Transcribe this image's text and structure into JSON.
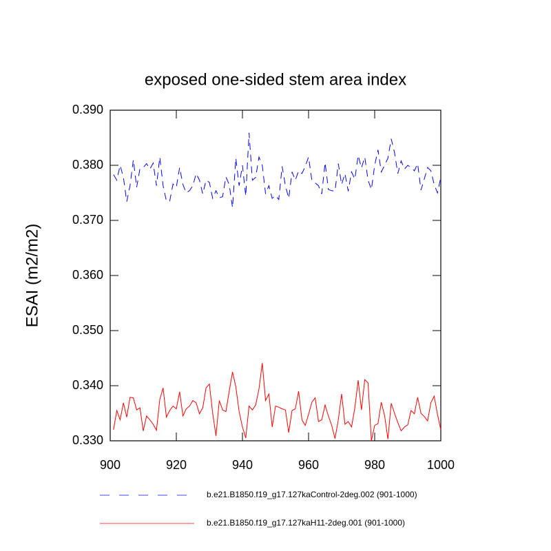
{
  "chart_data": {
    "type": "line",
    "title": "exposed one-sided stem area index",
    "ylabel": "ESAI  (m2/m2)",
    "xlim": [
      900,
      1000
    ],
    "xticks": [
      900,
      920,
      940,
      960,
      980,
      1000
    ],
    "ylim": [
      0.33,
      0.39
    ],
    "yticks": [
      {
        "value": 0.33,
        "label": "0.330"
      },
      {
        "value": 0.34,
        "label": "0.340"
      },
      {
        "value": 0.35,
        "label": "0.350"
      },
      {
        "value": 0.36,
        "label": "0.360"
      },
      {
        "value": 0.37,
        "label": "0.370"
      },
      {
        "value": 0.38,
        "label": "0.380"
      },
      {
        "value": 0.39,
        "label": "0.390"
      }
    ],
    "x": [
      901,
      902,
      903,
      904,
      905,
      906,
      907,
      908,
      909,
      910,
      911,
      912,
      913,
      914,
      915,
      916,
      917,
      918,
      919,
      920,
      921,
      922,
      923,
      924,
      925,
      926,
      927,
      928,
      929,
      930,
      931,
      932,
      933,
      934,
      935,
      936,
      937,
      938,
      939,
      940,
      941,
      942,
      943,
      944,
      945,
      946,
      947,
      948,
      949,
      950,
      951,
      952,
      953,
      954,
      955,
      956,
      957,
      958,
      959,
      960,
      961,
      962,
      963,
      964,
      965,
      966,
      967,
      968,
      969,
      970,
      971,
      972,
      973,
      974,
      975,
      976,
      977,
      978,
      979,
      980,
      981,
      982,
      983,
      984,
      985,
      986,
      987,
      988,
      989,
      990,
      991,
      992,
      993,
      994,
      995,
      996,
      997,
      998,
      999,
      1000
    ],
    "series": [
      {
        "name": "b.e21.B1850.f19_g17.127kaControl-2deg.002 (901-1000)",
        "color": "#0000ff",
        "dash": true,
        "values": [
          0.3783,
          0.3773,
          0.38,
          0.3778,
          0.3734,
          0.3763,
          0.381,
          0.376,
          0.3794,
          0.3796,
          0.3803,
          0.3793,
          0.3804,
          0.3763,
          0.3815,
          0.3763,
          0.3735,
          0.3735,
          0.3766,
          0.376,
          0.3796,
          0.3765,
          0.375,
          0.3754,
          0.3763,
          0.3785,
          0.3773,
          0.3748,
          0.3773,
          0.3769,
          0.374,
          0.3754,
          0.3741,
          0.3743,
          0.3779,
          0.3765,
          0.3723,
          0.3813,
          0.3763,
          0.38,
          0.3744,
          0.3859,
          0.3773,
          0.3778,
          0.3815,
          0.38,
          0.3748,
          0.3763,
          0.374,
          0.3745,
          0.3738,
          0.3798,
          0.3763,
          0.374,
          0.3788,
          0.3773,
          0.379,
          0.3785,
          0.3798,
          0.3815,
          0.3773,
          0.3768,
          0.3763,
          0.3748,
          0.3805,
          0.3756,
          0.3754,
          0.3753,
          0.3803,
          0.3765,
          0.3785,
          0.3753,
          0.3788,
          0.3775,
          0.3818,
          0.3795,
          0.3815,
          0.3773,
          0.3756,
          0.38,
          0.3828,
          0.3788,
          0.38,
          0.3813,
          0.3848,
          0.3823,
          0.3785,
          0.3808,
          0.3793,
          0.38,
          0.3796,
          0.379,
          0.3803,
          0.3755,
          0.3775,
          0.3796,
          0.379,
          0.3765,
          0.375,
          0.3778
        ]
      },
      {
        "name": "b.e21.B1850.f19_g17.127kaH11-2deg.001 (901-1000)",
        "color": "#ff0000",
        "dash": false,
        "values": [
          0.332,
          0.3355,
          0.3338,
          0.3369,
          0.3343,
          0.3379,
          0.3378,
          0.3356,
          0.336,
          0.3318,
          0.3345,
          0.3338,
          0.333,
          0.3319,
          0.3375,
          0.3396,
          0.3343,
          0.3355,
          0.3363,
          0.3358,
          0.3389,
          0.3345,
          0.3358,
          0.3363,
          0.3373,
          0.3369,
          0.3349,
          0.336,
          0.3396,
          0.3403,
          0.335,
          0.3309,
          0.3373,
          0.3356,
          0.3353,
          0.339,
          0.3425,
          0.3398,
          0.3353,
          0.3325,
          0.3305,
          0.3363,
          0.3356,
          0.3365,
          0.3394,
          0.3441,
          0.3373,
          0.3385,
          0.3325,
          0.3363,
          0.3361,
          0.3358,
          0.3356,
          0.3315,
          0.3355,
          0.3358,
          0.339,
          0.3338,
          0.3328,
          0.3348,
          0.337,
          0.3378,
          0.3335,
          0.3338,
          0.3365,
          0.3345,
          0.3328,
          0.3304,
          0.3338,
          0.3385,
          0.333,
          0.3335,
          0.3325,
          0.336,
          0.341,
          0.3356,
          0.3411,
          0.3405,
          0.33,
          0.3328,
          0.3331,
          0.337,
          0.3346,
          0.3303,
          0.3368,
          0.335,
          0.3333,
          0.3318,
          0.3325,
          0.3329,
          0.3355,
          0.3349,
          0.3379,
          0.335,
          0.3344,
          0.3336,
          0.3369,
          0.3381,
          0.3348,
          0.332
        ]
      }
    ]
  }
}
